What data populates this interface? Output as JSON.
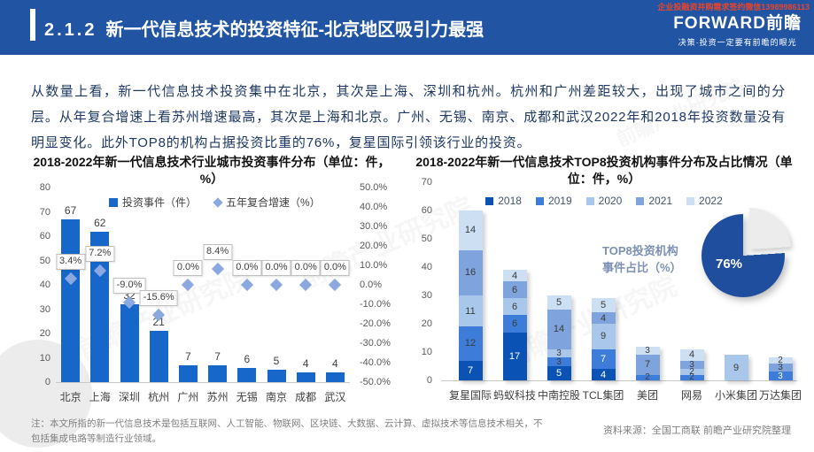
{
  "header": {
    "slide_number": "2.1.2",
    "title": "新一代信息技术的投资特征-北京地区吸引力最强",
    "wechat_note": "企业投融资并购需求签约微信13989986113",
    "logo_text": "FORWARD前瞻",
    "logo_slogan": "决策·投资一定要有前瞻的眼光"
  },
  "body_paragraph": "从数量上看，新一代信息技术投资集中在北京，其次是上海、深圳和杭州。杭州和广州差距较大，出现了城市之间的分层。从年复合增速上看苏州增速最高，其次是上海和北京。广州、无锡、南京、成都和武汉2022年和2018年投资数量没有明显变化。此外TOP8的机构占据投资比重的76%，复星国际引领该行业的投资。",
  "watermark": "前瞻产业研究院",
  "footnotes": {
    "note": "注：本文所指的新一代信息技术是包括互联网、人工智能、物联网、区块链、大数据、云计算、虚拟技术等信息技术相关，不包括集成电路等制造行业领域。",
    "source": "资料来源：全国工商联 前瞻产业研究院整理"
  },
  "colors": {
    "header_blue": "#2155A4",
    "bar_blue": "#1667C9",
    "diamond_blue": "#8BA9E0",
    "pie_blue": "#1F4E9E",
    "pie_gray": "#ECECEC"
  },
  "chart_data": [
    {
      "type": "bar",
      "title": "2018-2022年新一代信息技术行业城市投资事件分布（单位：件，%）",
      "legend": [
        "投资事件（件）",
        "五年复合增速（%）"
      ],
      "categories": [
        "北京",
        "上海",
        "深圳",
        "杭州",
        "广州",
        "苏州",
        "无锡",
        "南京",
        "成都",
        "武汉"
      ],
      "bar_values": [
        67,
        62,
        32,
        21,
        7,
        7,
        6,
        5,
        4,
        4
      ],
      "cagr_values": [
        3.4,
        7.2,
        -9.0,
        -15.6,
        0.0,
        8.4,
        0.0,
        0.0,
        0.0,
        0.0
      ],
      "cagr_labels": [
        "3.4%",
        "7.2%",
        "-9.0%",
        "-15.6%",
        "0.0%",
        "8.4%",
        "0.0%",
        "0.0%",
        "0.0%",
        "0.0%"
      ],
      "left_axis": {
        "min": 0,
        "max": 80,
        "step": 10
      },
      "right_axis": {
        "min": -50,
        "max": 50,
        "step": 10
      },
      "grid": false,
      "legend_position": "top"
    },
    {
      "type": "bar",
      "subtype": "stacked",
      "title": "2018-2022年新一代信息技术TOP8投资机构事件分布及占比情况（单位：件，%）",
      "legend": [
        "2018",
        "2019",
        "2020",
        "2021",
        "2022"
      ],
      "series_colors": {
        "2018": "#0A53B5",
        "2019": "#3E7CD9",
        "2020": "#A9C7EB",
        "2021": "#7FA3DC",
        "2022": "#CDDFF3"
      },
      "categories": [
        "复星国际",
        "蚂蚁科技",
        "中南控股",
        "TCL集团",
        "美团",
        "网易",
        "小米集团",
        "万达集团"
      ],
      "bars": [
        {
          "label": "复星国际",
          "segments": [
            {
              "year": "2018",
              "value": 7,
              "white_text": true
            },
            {
              "year": "2019",
              "value": 12
            },
            {
              "year": "2020",
              "value": 11
            },
            {
              "year": "2021",
              "value": 16
            },
            {
              "year": "2022",
              "value": 14
            }
          ]
        },
        {
          "label": "蚂蚁科技",
          "segments": [
            {
              "year": "2018",
              "value": 17,
              "white_text": true
            },
            {
              "year": "2019",
              "value": 6
            },
            {
              "year": "2020",
              "value": 6
            },
            {
              "year": "2021",
              "value": 6
            },
            {
              "year": "2022",
              "value": 4
            }
          ]
        },
        {
          "label": "中南控股",
          "segments": [
            {
              "year": "2018",
              "value": 5,
              "white_text": true
            },
            {
              "year": "2019",
              "value": 3
            },
            {
              "year": "2020",
              "value": 3
            },
            {
              "year": "2021",
              "value": 14
            },
            {
              "year": "2022",
              "value": 5
            }
          ]
        },
        {
          "label": "TCL集团",
          "segments": [
            {
              "year": "2018",
              "value": 4,
              "white_text": true
            },
            {
              "year": "2019",
              "value": 7,
              "white_text": true
            },
            {
              "year": "2020",
              "value": 9
            },
            {
              "year": "2021",
              "value": 4
            },
            {
              "year": "2022",
              "value": 5
            }
          ]
        },
        {
          "label": "美团",
          "segments": [
            {
              "year": "2019",
              "value": 2
            },
            {
              "year": "2021",
              "value": 7
            },
            {
              "year": "2022",
              "value": 3
            }
          ]
        },
        {
          "label": "网易",
          "segments": [
            {
              "year": "2019",
              "value": 2
            },
            {
              "year": "2020",
              "value": 2
            },
            {
              "year": "2021",
              "value": 3
            },
            {
              "year": "2022",
              "value": 4
            }
          ]
        },
        {
          "label": "小米集团",
          "segments": [
            {
              "year": "2020",
              "value": 9
            }
          ]
        },
        {
          "label": "万达集团",
          "segments": [
            {
              "year": "2019",
              "value": 3,
              "white_text": true
            },
            {
              "year": "2021",
              "value": 3
            },
            {
              "year": "2022",
              "value": 2
            }
          ]
        }
      ],
      "y_axis": {
        "min": 0,
        "max": 70,
        "step": 10
      },
      "grid": false,
      "legend_position": "top",
      "pie": {
        "label_line1": "TOP8投资机构",
        "label_line2": "事件占比（%）",
        "value": 76,
        "rest": 24,
        "value_label": "76%"
      }
    }
  ]
}
